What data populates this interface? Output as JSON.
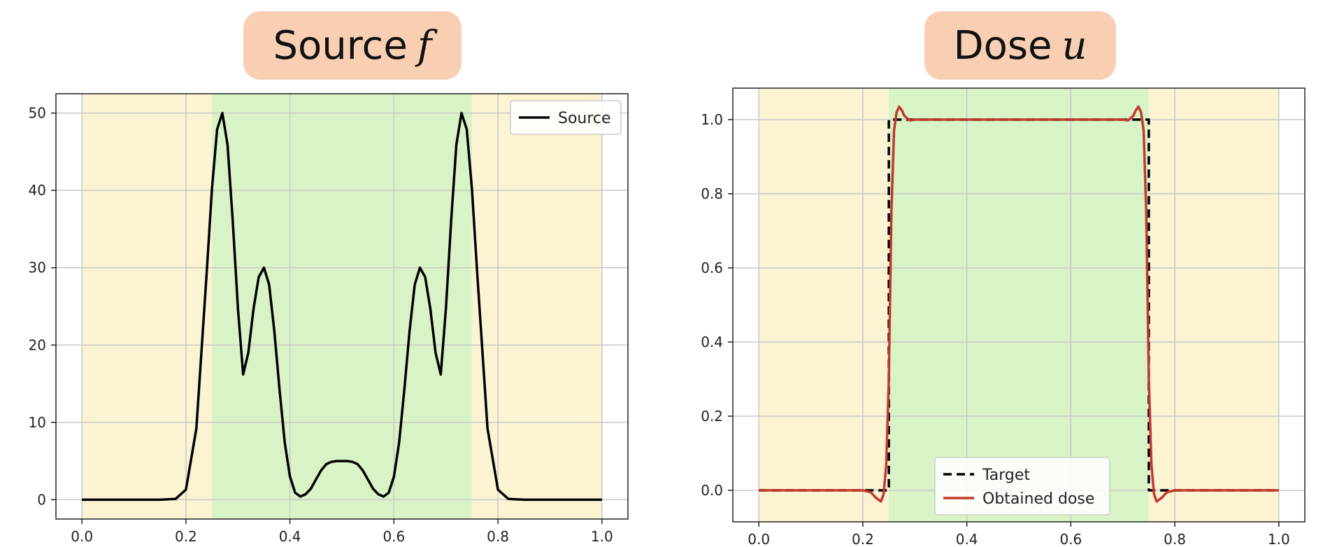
{
  "chart_data": [
    {
      "type": "line",
      "title_text": "Source",
      "title_var": "f",
      "xlim": [
        -0.05,
        1.05
      ],
      "ylim": [
        -2.5,
        52.5
      ],
      "x_ticks": [
        0.0,
        0.2,
        0.4,
        0.6,
        0.8,
        1.0
      ],
      "x_tick_labels": [
        "0.0",
        "0.2",
        "0.4",
        "0.6",
        "0.8",
        "1.0"
      ],
      "y_ticks": [
        0,
        10,
        20,
        30,
        40,
        50
      ],
      "y_tick_labels": [
        "0",
        "10",
        "20",
        "30",
        "40",
        "50"
      ],
      "grid": true,
      "regions": [
        {
          "x0": 0.0,
          "x1": 0.25,
          "color": "#fbf3d2"
        },
        {
          "x0": 0.25,
          "x1": 0.75,
          "color": "#d8f4c6"
        },
        {
          "x0": 0.75,
          "x1": 1.0,
          "color": "#fbf3d2"
        }
      ],
      "legend_position": "upper-right",
      "series": [
        {
          "name": "Source",
          "color": "#000000",
          "style": "solid",
          "x": [
            0.0,
            0.1,
            0.15,
            0.18,
            0.2,
            0.22,
            0.24,
            0.25,
            0.26,
            0.27,
            0.28,
            0.29,
            0.3,
            0.31,
            0.32,
            0.33,
            0.34,
            0.35,
            0.36,
            0.37,
            0.38,
            0.39,
            0.4,
            0.41,
            0.42,
            0.43,
            0.44,
            0.45,
            0.46,
            0.47,
            0.48,
            0.49,
            0.5,
            0.51,
            0.52,
            0.53,
            0.54,
            0.55,
            0.56,
            0.57,
            0.58,
            0.59,
            0.6,
            0.61,
            0.62,
            0.63,
            0.64,
            0.65,
            0.66,
            0.67,
            0.68,
            0.69,
            0.7,
            0.71,
            0.72,
            0.73,
            0.74,
            0.75,
            0.76,
            0.78,
            0.8,
            0.82,
            0.85,
            0.9,
            1.0
          ],
          "y": [
            0,
            0,
            0,
            0.1,
            1.3,
            9.2,
            29.5,
            40.2,
            47.9,
            50.0,
            45.9,
            36.1,
            24.7,
            16.2,
            19.0,
            24.7,
            28.8,
            30.0,
            27.8,
            21.8,
            14.2,
            7.4,
            3.0,
            0.9,
            0.4,
            0.7,
            1.4,
            2.6,
            3.8,
            4.6,
            4.9,
            5.0,
            5.0,
            5.0,
            4.9,
            4.6,
            3.8,
            2.6,
            1.4,
            0.7,
            0.4,
            0.9,
            3.0,
            7.4,
            14.2,
            21.8,
            27.8,
            30.0,
            28.8,
            24.7,
            19.0,
            16.2,
            24.7,
            36.1,
            45.9,
            50.0,
            47.9,
            40.2,
            29.5,
            9.2,
            1.3,
            0.1,
            0,
            0,
            0
          ]
        }
      ]
    },
    {
      "type": "line",
      "title_text": "Dose",
      "title_var": "u",
      "xlim": [
        -0.05,
        1.05
      ],
      "ylim": [
        -0.085,
        1.085
      ],
      "x_ticks": [
        0.0,
        0.2,
        0.4,
        0.6,
        0.8,
        1.0
      ],
      "x_tick_labels": [
        "0.0",
        "0.2",
        "0.4",
        "0.6",
        "0.8",
        "1.0"
      ],
      "y_ticks": [
        0.0,
        0.2,
        0.4,
        0.6,
        0.8,
        1.0
      ],
      "y_tick_labels": [
        "0.0",
        "0.2",
        "0.4",
        "0.6",
        "0.8",
        "1.0"
      ],
      "grid": true,
      "regions": [
        {
          "x0": 0.0,
          "x1": 0.25,
          "color": "#fbf3d2"
        },
        {
          "x0": 0.25,
          "x1": 0.75,
          "color": "#d8f4c6"
        },
        {
          "x0": 0.75,
          "x1": 1.0,
          "color": "#fbf3d2"
        }
      ],
      "legend_position": "lower-center",
      "series": [
        {
          "name": "Target",
          "color": "#000000",
          "style": "dashed",
          "x": [
            0.0,
            0.25,
            0.25,
            0.75,
            0.75,
            1.0
          ],
          "y": [
            0.0,
            0.0,
            1.0,
            1.0,
            0.0,
            0.0
          ]
        },
        {
          "name": "Obtained dose",
          "color": "#c4372d",
          "style": "solid",
          "x": [
            0.0,
            0.2,
            0.215,
            0.225,
            0.235,
            0.24,
            0.245,
            0.25,
            0.255,
            0.26,
            0.265,
            0.27,
            0.275,
            0.28,
            0.29,
            0.3,
            0.5,
            0.7,
            0.71,
            0.72,
            0.725,
            0.73,
            0.735,
            0.74,
            0.745,
            0.75,
            0.755,
            0.76,
            0.765,
            0.775,
            0.785,
            0.8,
            1.0
          ],
          "y": [
            0.0,
            0.0,
            -0.005,
            -0.02,
            -0.03,
            -0.01,
            0.07,
            0.3,
            0.75,
            0.97,
            1.02,
            1.035,
            1.025,
            1.01,
            0.998,
            1.0,
            1.0,
            1.0,
            0.998,
            1.01,
            1.025,
            1.035,
            1.02,
            0.97,
            0.75,
            0.3,
            0.07,
            -0.01,
            -0.03,
            -0.02,
            -0.005,
            0.0,
            0.0
          ]
        }
      ]
    }
  ]
}
